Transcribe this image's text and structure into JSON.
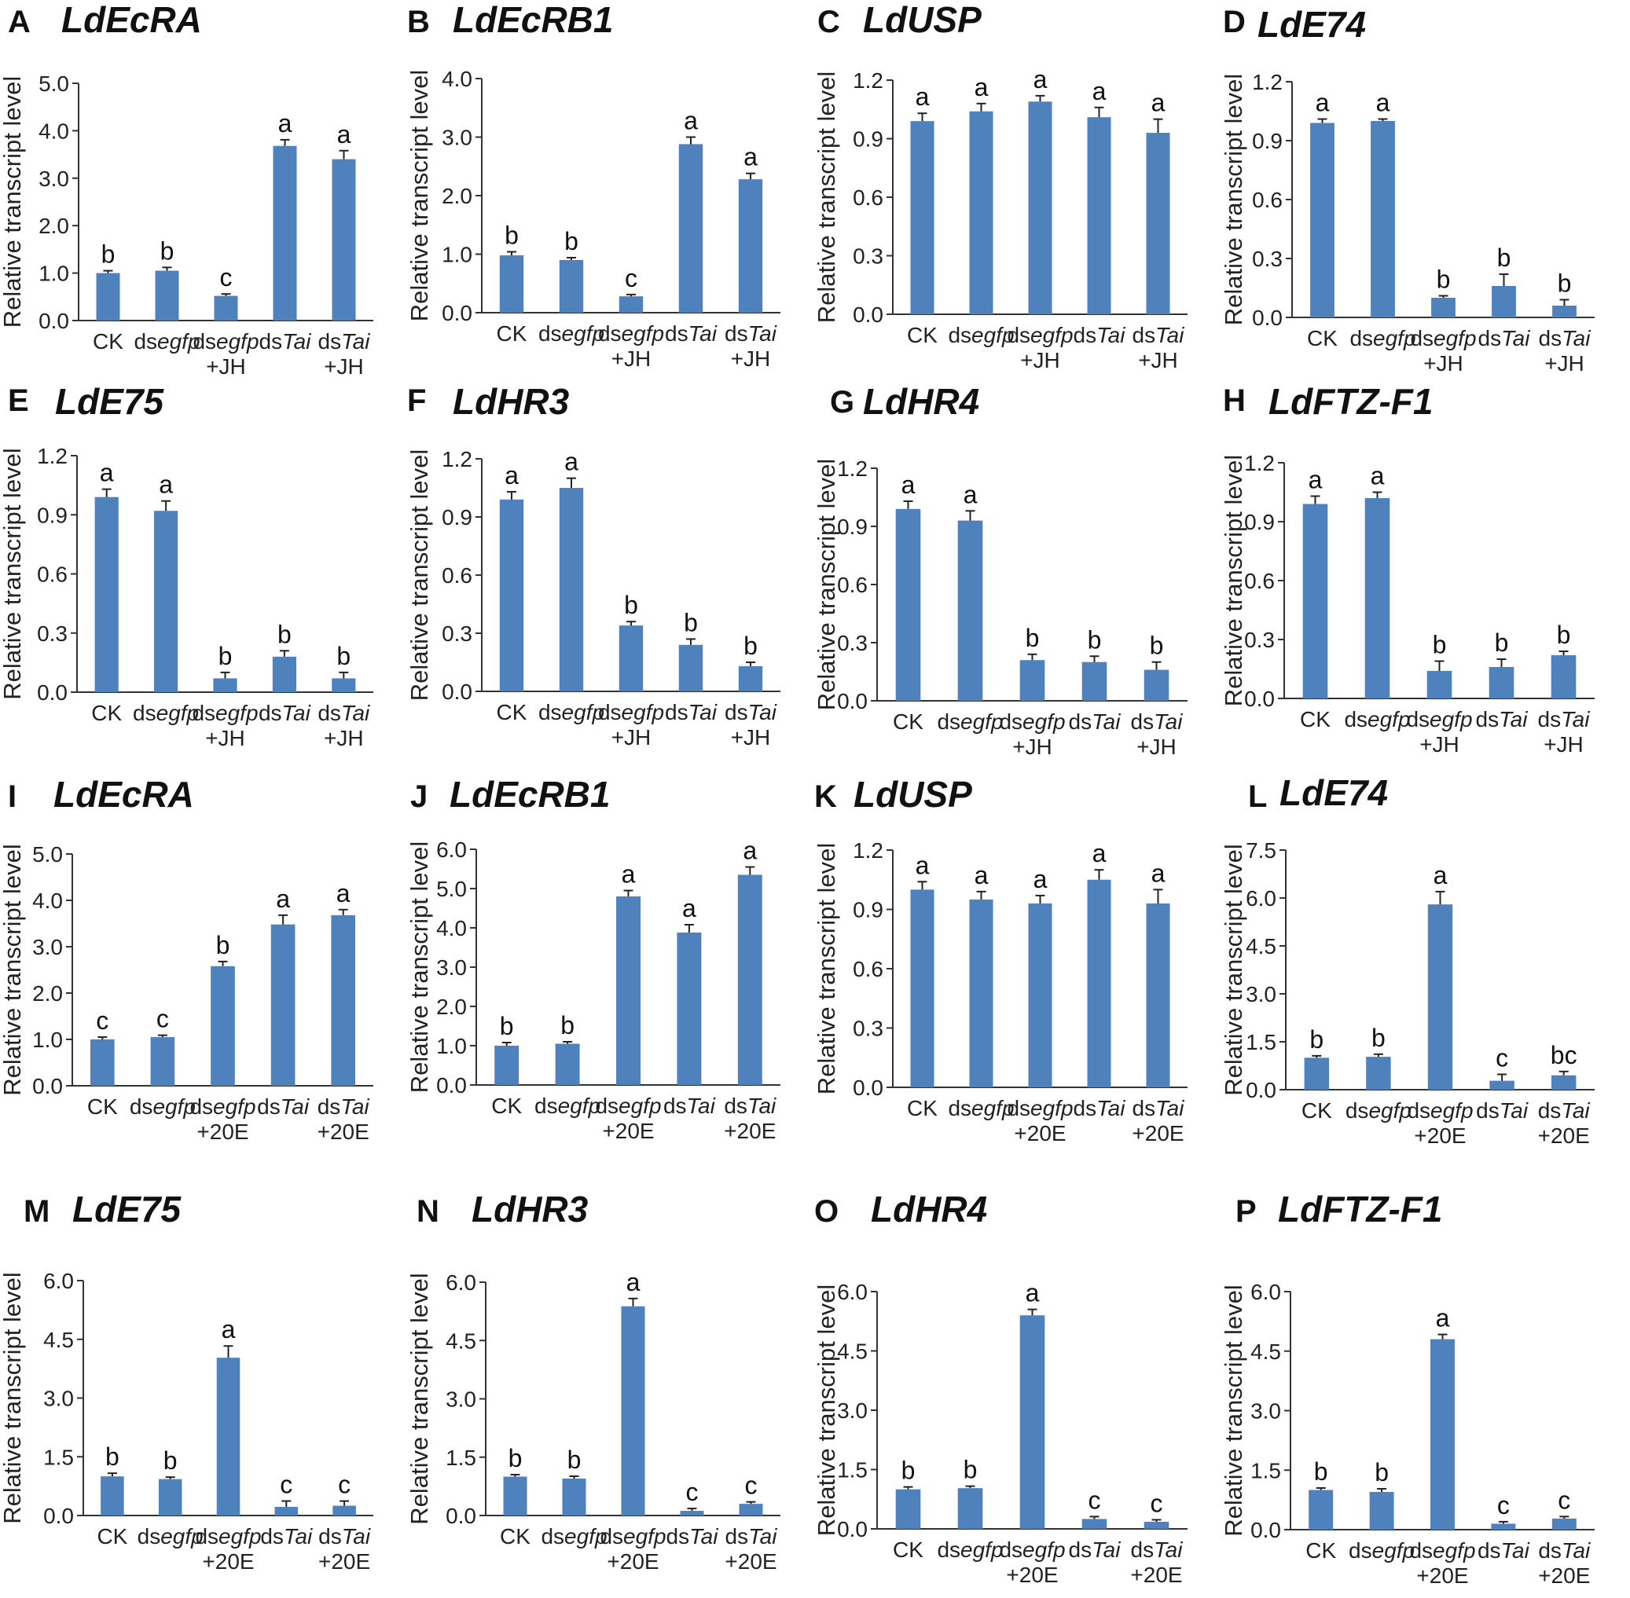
{
  "figure": {
    "bar_color": "#4f81bd",
    "axis_color": "#333333"
  },
  "chart_data": [
    {
      "panel": "A",
      "title": "LdEcRA",
      "type": "bar",
      "ylabel": "Relative transcript level",
      "ylim": [
        0,
        5
      ],
      "yticks": [
        "0.0",
        "1.0",
        "2.0",
        "3.0",
        "4.0",
        "5.0"
      ],
      "categories": [
        [
          "CK"
        ],
        [
          "dsegfp"
        ],
        [
          "dsegfp",
          "+JH"
        ],
        [
          "dsTai"
        ],
        [
          "dsTai",
          "+JH"
        ]
      ],
      "values": [
        1.0,
        1.05,
        0.52,
        3.68,
        3.4
      ],
      "errors": [
        0.05,
        0.07,
        0.04,
        0.13,
        0.18
      ],
      "letters": [
        "b",
        "b",
        "c",
        "a",
        "a"
      ]
    },
    {
      "panel": "B",
      "title": "LdEcRB1",
      "type": "bar",
      "ylabel": "Relative transcript level",
      "ylim": [
        0,
        4
      ],
      "yticks": [
        "0.0",
        "1.0",
        "2.0",
        "3.0",
        "4.0"
      ],
      "categories": [
        [
          "CK"
        ],
        [
          "dsegfp"
        ],
        [
          "dsegfp",
          "+JH"
        ],
        [
          "dsTai"
        ],
        [
          "dsTai",
          "+JH"
        ]
      ],
      "values": [
        0.98,
        0.9,
        0.28,
        2.88,
        2.28
      ],
      "errors": [
        0.06,
        0.04,
        0.03,
        0.12,
        0.1
      ],
      "letters": [
        "b",
        "b",
        "c",
        "a",
        "a"
      ]
    },
    {
      "panel": "C",
      "title": "LdUSP",
      "type": "bar",
      "ylabel": "Relative transcript level",
      "ylim": [
        0,
        1.2
      ],
      "yticks": [
        "0.0",
        "0.3",
        "0.6",
        "0.9",
        "1.2"
      ],
      "categories": [
        [
          "CK"
        ],
        [
          "dsegfp"
        ],
        [
          "dsegfp",
          "+JH"
        ],
        [
          "dsTai"
        ],
        [
          "dsTai",
          "+JH"
        ]
      ],
      "values": [
        0.99,
        1.04,
        1.09,
        1.01,
        0.93
      ],
      "errors": [
        0.04,
        0.04,
        0.03,
        0.05,
        0.07
      ],
      "letters": [
        "a",
        "a",
        "a",
        "a",
        "a"
      ]
    },
    {
      "panel": "D",
      "title": "LdE74",
      "type": "bar",
      "ylabel": "Relative transcript level",
      "ylim": [
        0,
        1.2
      ],
      "yticks": [
        "0.0",
        "0.3",
        "0.6",
        "0.9",
        "1.2"
      ],
      "categories": [
        [
          "CK"
        ],
        [
          "dsegfp"
        ],
        [
          "dsegfp",
          "+JH"
        ],
        [
          "dsTai"
        ],
        [
          "dsTai",
          "+JH"
        ]
      ],
      "values": [
        0.99,
        1.0,
        0.1,
        0.16,
        0.06
      ],
      "errors": [
        0.02,
        0.01,
        0.01,
        0.06,
        0.03
      ],
      "letters": [
        "a",
        "a",
        "b",
        "b",
        "b"
      ]
    },
    {
      "panel": "E",
      "title": "LdE75",
      "type": "bar",
      "ylabel": "Relative transcript level",
      "ylim": [
        0,
        1.2
      ],
      "yticks": [
        "0.0",
        "0.3",
        "0.6",
        "0.9",
        "1.2"
      ],
      "categories": [
        [
          "CK"
        ],
        [
          "dsegfp"
        ],
        [
          "dsegfp",
          "+JH"
        ],
        [
          "dsTai"
        ],
        [
          "dsTai",
          "+JH"
        ]
      ],
      "values": [
        0.99,
        0.92,
        0.07,
        0.18,
        0.07
      ],
      "errors": [
        0.04,
        0.05,
        0.03,
        0.03,
        0.03
      ],
      "letters": [
        "a",
        "a",
        "b",
        "b",
        "b"
      ]
    },
    {
      "panel": "F",
      "title": "LdHR3",
      "type": "bar",
      "ylabel": "Relative transcript level",
      "ylim": [
        0,
        1.2
      ],
      "yticks": [
        "0.0",
        "0.3",
        "0.6",
        "0.9",
        "1.2"
      ],
      "categories": [
        [
          "CK"
        ],
        [
          "dsegfp"
        ],
        [
          "dsegfp",
          "+JH"
        ],
        [
          "dsTai"
        ],
        [
          "dsTai",
          "+JH"
        ]
      ],
      "values": [
        0.99,
        1.05,
        0.34,
        0.24,
        0.13
      ],
      "errors": [
        0.04,
        0.05,
        0.02,
        0.03,
        0.02
      ],
      "letters": [
        "a",
        "a",
        "b",
        "b",
        "b"
      ]
    },
    {
      "panel": "G",
      "title": "LdHR4",
      "type": "bar",
      "ylabel": "Relative transcript level",
      "ylim": [
        0,
        1.2
      ],
      "yticks": [
        "0.0",
        "0.3",
        "0.6",
        "0.9",
        "1.2"
      ],
      "categories": [
        [
          "CK"
        ],
        [
          "dsegfp"
        ],
        [
          "dsegfp",
          "+JH"
        ],
        [
          "dsTai"
        ],
        [
          "dsTai",
          "+JH"
        ]
      ],
      "values": [
        0.99,
        0.93,
        0.21,
        0.2,
        0.16
      ],
      "errors": [
        0.04,
        0.05,
        0.03,
        0.03,
        0.04
      ],
      "letters": [
        "a",
        "a",
        "b",
        "b",
        "b"
      ]
    },
    {
      "panel": "H",
      "title": "LdFTZ-F1",
      "type": "bar",
      "ylabel": "Relative transcript level",
      "ylim": [
        0,
        1.2
      ],
      "yticks": [
        "0.0",
        "0.3",
        "0.6",
        "0.9",
        "1.2"
      ],
      "categories": [
        [
          "CK"
        ],
        [
          "dsegfp"
        ],
        [
          "dsegfp",
          "+JH"
        ],
        [
          "dsTai"
        ],
        [
          "dsTai",
          "+JH"
        ]
      ],
      "values": [
        0.99,
        1.02,
        0.14,
        0.16,
        0.22
      ],
      "errors": [
        0.04,
        0.03,
        0.05,
        0.04,
        0.02
      ],
      "letters": [
        "a",
        "a",
        "b",
        "b",
        "b"
      ]
    },
    {
      "panel": "I",
      "title": "LdEcRA",
      "type": "bar",
      "ylabel": "Relative transcript level",
      "ylim": [
        0,
        5
      ],
      "yticks": [
        "0.0",
        "1.0",
        "2.0",
        "3.0",
        "4.0",
        "5.0"
      ],
      "categories": [
        [
          "CK"
        ],
        [
          "dsegfp"
        ],
        [
          "dsegfp",
          "+20E"
        ],
        [
          "dsTai"
        ],
        [
          "dsTai",
          "+20E"
        ]
      ],
      "values": [
        1.0,
        1.05,
        2.58,
        3.48,
        3.68
      ],
      "errors": [
        0.05,
        0.04,
        0.1,
        0.2,
        0.12
      ],
      "letters": [
        "c",
        "c",
        "b",
        "a",
        "a"
      ]
    },
    {
      "panel": "J",
      "title": "LdEcRB1",
      "type": "bar",
      "ylabel": "Relative transcript level",
      "ylim": [
        0,
        6
      ],
      "yticks": [
        "0.0",
        "1.0",
        "2.0",
        "3.0",
        "4.0",
        "5.0",
        "6.0"
      ],
      "categories": [
        [
          "CK"
        ],
        [
          "dsegfp"
        ],
        [
          "dsegfp",
          "+20E"
        ],
        [
          "dsTai"
        ],
        [
          "dsTai",
          "+20E"
        ]
      ],
      "values": [
        1.0,
        1.05,
        4.8,
        3.88,
        5.35
      ],
      "errors": [
        0.08,
        0.05,
        0.15,
        0.2,
        0.2
      ],
      "letters": [
        "b",
        "b",
        "a",
        "a",
        "a"
      ]
    },
    {
      "panel": "K",
      "title": "LdUSP",
      "type": "bar",
      "ylabel": "Relative transcript level",
      "ylim": [
        0,
        1.2
      ],
      "yticks": [
        "0.0",
        "0.3",
        "0.6",
        "0.9",
        "1.2"
      ],
      "categories": [
        [
          "CK"
        ],
        [
          "dsegfp"
        ],
        [
          "dsegfp",
          "+20E"
        ],
        [
          "dsTai"
        ],
        [
          "dsTai",
          "+20E"
        ]
      ],
      "values": [
        1.0,
        0.95,
        0.93,
        1.05,
        0.93
      ],
      "errors": [
        0.04,
        0.04,
        0.04,
        0.05,
        0.07
      ],
      "letters": [
        "a",
        "a",
        "a",
        "a",
        "a"
      ]
    },
    {
      "panel": "L",
      "title": "LdE74",
      "type": "bar",
      "ylabel": "Relative transcript level",
      "ylim": [
        0,
        7.5
      ],
      "yticks": [
        "0.0",
        "1.5",
        "3.0",
        "4.5",
        "6.0",
        "7.5"
      ],
      "categories": [
        [
          "CK"
        ],
        [
          "dsegfp"
        ],
        [
          "dsegfp",
          "+20E"
        ],
        [
          "dsTai"
        ],
        [
          "dsTai",
          "+20E"
        ]
      ],
      "values": [
        1.0,
        1.03,
        5.8,
        0.28,
        0.45
      ],
      "errors": [
        0.06,
        0.08,
        0.4,
        0.2,
        0.12
      ],
      "letters": [
        "b",
        "b",
        "a",
        "c",
        "bc"
      ]
    },
    {
      "panel": "M",
      "title": "LdE75",
      "type": "bar",
      "ylabel": "Relative transcript level",
      "ylim": [
        0,
        6
      ],
      "yticks": [
        "0.0",
        "1.5",
        "3.0",
        "4.5",
        "6.0"
      ],
      "categories": [
        [
          "CK"
        ],
        [
          "dsegfp"
        ],
        [
          "dsegfp",
          "+20E"
        ],
        [
          "dsTai"
        ],
        [
          "dsTai",
          "+20E"
        ]
      ],
      "values": [
        1.0,
        0.93,
        4.03,
        0.22,
        0.25
      ],
      "errors": [
        0.08,
        0.05,
        0.3,
        0.15,
        0.12
      ],
      "letters": [
        "b",
        "b",
        "a",
        "c",
        "c"
      ]
    },
    {
      "panel": "N",
      "title": "LdHR3",
      "type": "bar",
      "ylabel": "Relative transcript level",
      "ylim": [
        0,
        6
      ],
      "yticks": [
        "0.0",
        "1.5",
        "3.0",
        "4.5",
        "6.0"
      ],
      "categories": [
        [
          "CK"
        ],
        [
          "dsegfp"
        ],
        [
          "dsegfp",
          "+20E"
        ],
        [
          "dsTai"
        ],
        [
          "dsTai",
          "+20E"
        ]
      ],
      "values": [
        1.0,
        0.95,
        5.38,
        0.12,
        0.3
      ],
      "errors": [
        0.05,
        0.06,
        0.2,
        0.06,
        0.05
      ],
      "letters": [
        "b",
        "b",
        "a",
        "c",
        "c"
      ]
    },
    {
      "panel": "O",
      "title": "LdHR4",
      "type": "bar",
      "ylabel": "Relative transcript level",
      "ylim": [
        0,
        6
      ],
      "yticks": [
        "0.0",
        "1.5",
        "3.0",
        "4.5",
        "6.0"
      ],
      "categories": [
        [
          "CK"
        ],
        [
          "dsegfp"
        ],
        [
          "dsegfp",
          "+20E"
        ],
        [
          "dsTai"
        ],
        [
          "dsTai",
          "+20E"
        ]
      ],
      "values": [
        1.0,
        1.03,
        5.4,
        0.25,
        0.18
      ],
      "errors": [
        0.06,
        0.05,
        0.15,
        0.06,
        0.05
      ],
      "letters": [
        "b",
        "b",
        "a",
        "c",
        "c"
      ]
    },
    {
      "panel": "P",
      "title": "LdFTZ-F1",
      "type": "bar",
      "ylabel": "Relative transcript level",
      "ylim": [
        0,
        6
      ],
      "yticks": [
        "0.0",
        "1.5",
        "3.0",
        "4.5",
        "6.0"
      ],
      "categories": [
        [
          "CK"
        ],
        [
          "dsegfp"
        ],
        [
          "dsegfp",
          "+20E"
        ],
        [
          "dsTai"
        ],
        [
          "dsTai",
          "+20E"
        ]
      ],
      "values": [
        1.0,
        0.95,
        4.8,
        0.15,
        0.28
      ],
      "errors": [
        0.05,
        0.08,
        0.12,
        0.05,
        0.05
      ],
      "letters": [
        "b",
        "b",
        "a",
        "c",
        "c"
      ]
    }
  ]
}
